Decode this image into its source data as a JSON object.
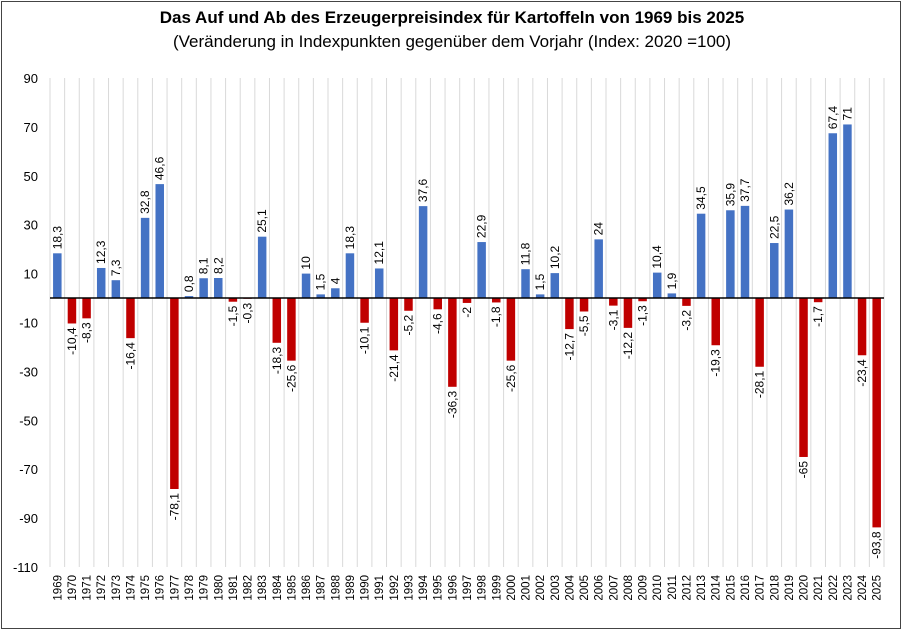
{
  "chart_data": {
    "type": "bar",
    "title": "Das Auf und Ab des Erzeugerpreisindex für Kartoffeln von 1969 bis 2025",
    "subtitle": "(Veränderung in Indexpunkten gegenüber dem Vorjahr (Index: 2020 =100)",
    "xlabel": "",
    "ylabel": "",
    "ylim": [
      -110,
      90
    ],
    "yticks": [
      90,
      70,
      50,
      30,
      10,
      -10,
      -30,
      -50,
      -70,
      -90,
      -110
    ],
    "grid": "vertical",
    "colors": {
      "positive": "#4472C4",
      "negative": "#C00000"
    },
    "categories": [
      "1969",
      "1970",
      "1971",
      "1972",
      "1973",
      "1974",
      "1975",
      "1976",
      "1977",
      "1978",
      "1979",
      "1980",
      "1981",
      "1982",
      "1983",
      "1984",
      "1985",
      "1986",
      "1987",
      "1988",
      "1989",
      "1990",
      "1991",
      "1992",
      "1993",
      "1994",
      "1995",
      "1996",
      "1997",
      "1998",
      "1999",
      "2000",
      "2001",
      "2002",
      "2003",
      "2004",
      "2005",
      "2006",
      "2007",
      "2008",
      "2009",
      "2010",
      "2011",
      "2012",
      "2013",
      "2014",
      "2015",
      "2016",
      "2017",
      "2018",
      "2019",
      "2020",
      "2021",
      "2022",
      "2023",
      "2024",
      "2025"
    ],
    "values": [
      18.3,
      -10.4,
      -8.3,
      12.3,
      7.3,
      -16.4,
      32.8,
      46.6,
      -78.1,
      0.8,
      8.1,
      8.2,
      -1.5,
      -0.3,
      25.1,
      -18.3,
      -25.6,
      10,
      1.5,
      4,
      18.3,
      -10.1,
      12.1,
      -21.4,
      -5.2,
      37.6,
      -4.6,
      -36.3,
      -2,
      22.9,
      -1.8,
      -25.6,
      11.8,
      1.5,
      10.2,
      -12.7,
      -5.5,
      24,
      -3.1,
      -12.2,
      -1.3,
      10.4,
      1.9,
      -3.2,
      34.5,
      -19.3,
      35.9,
      37.7,
      -28.1,
      22.5,
      36.2,
      -65,
      -1.7,
      67.4,
      71,
      -23.4,
      -93.8
    ]
  }
}
